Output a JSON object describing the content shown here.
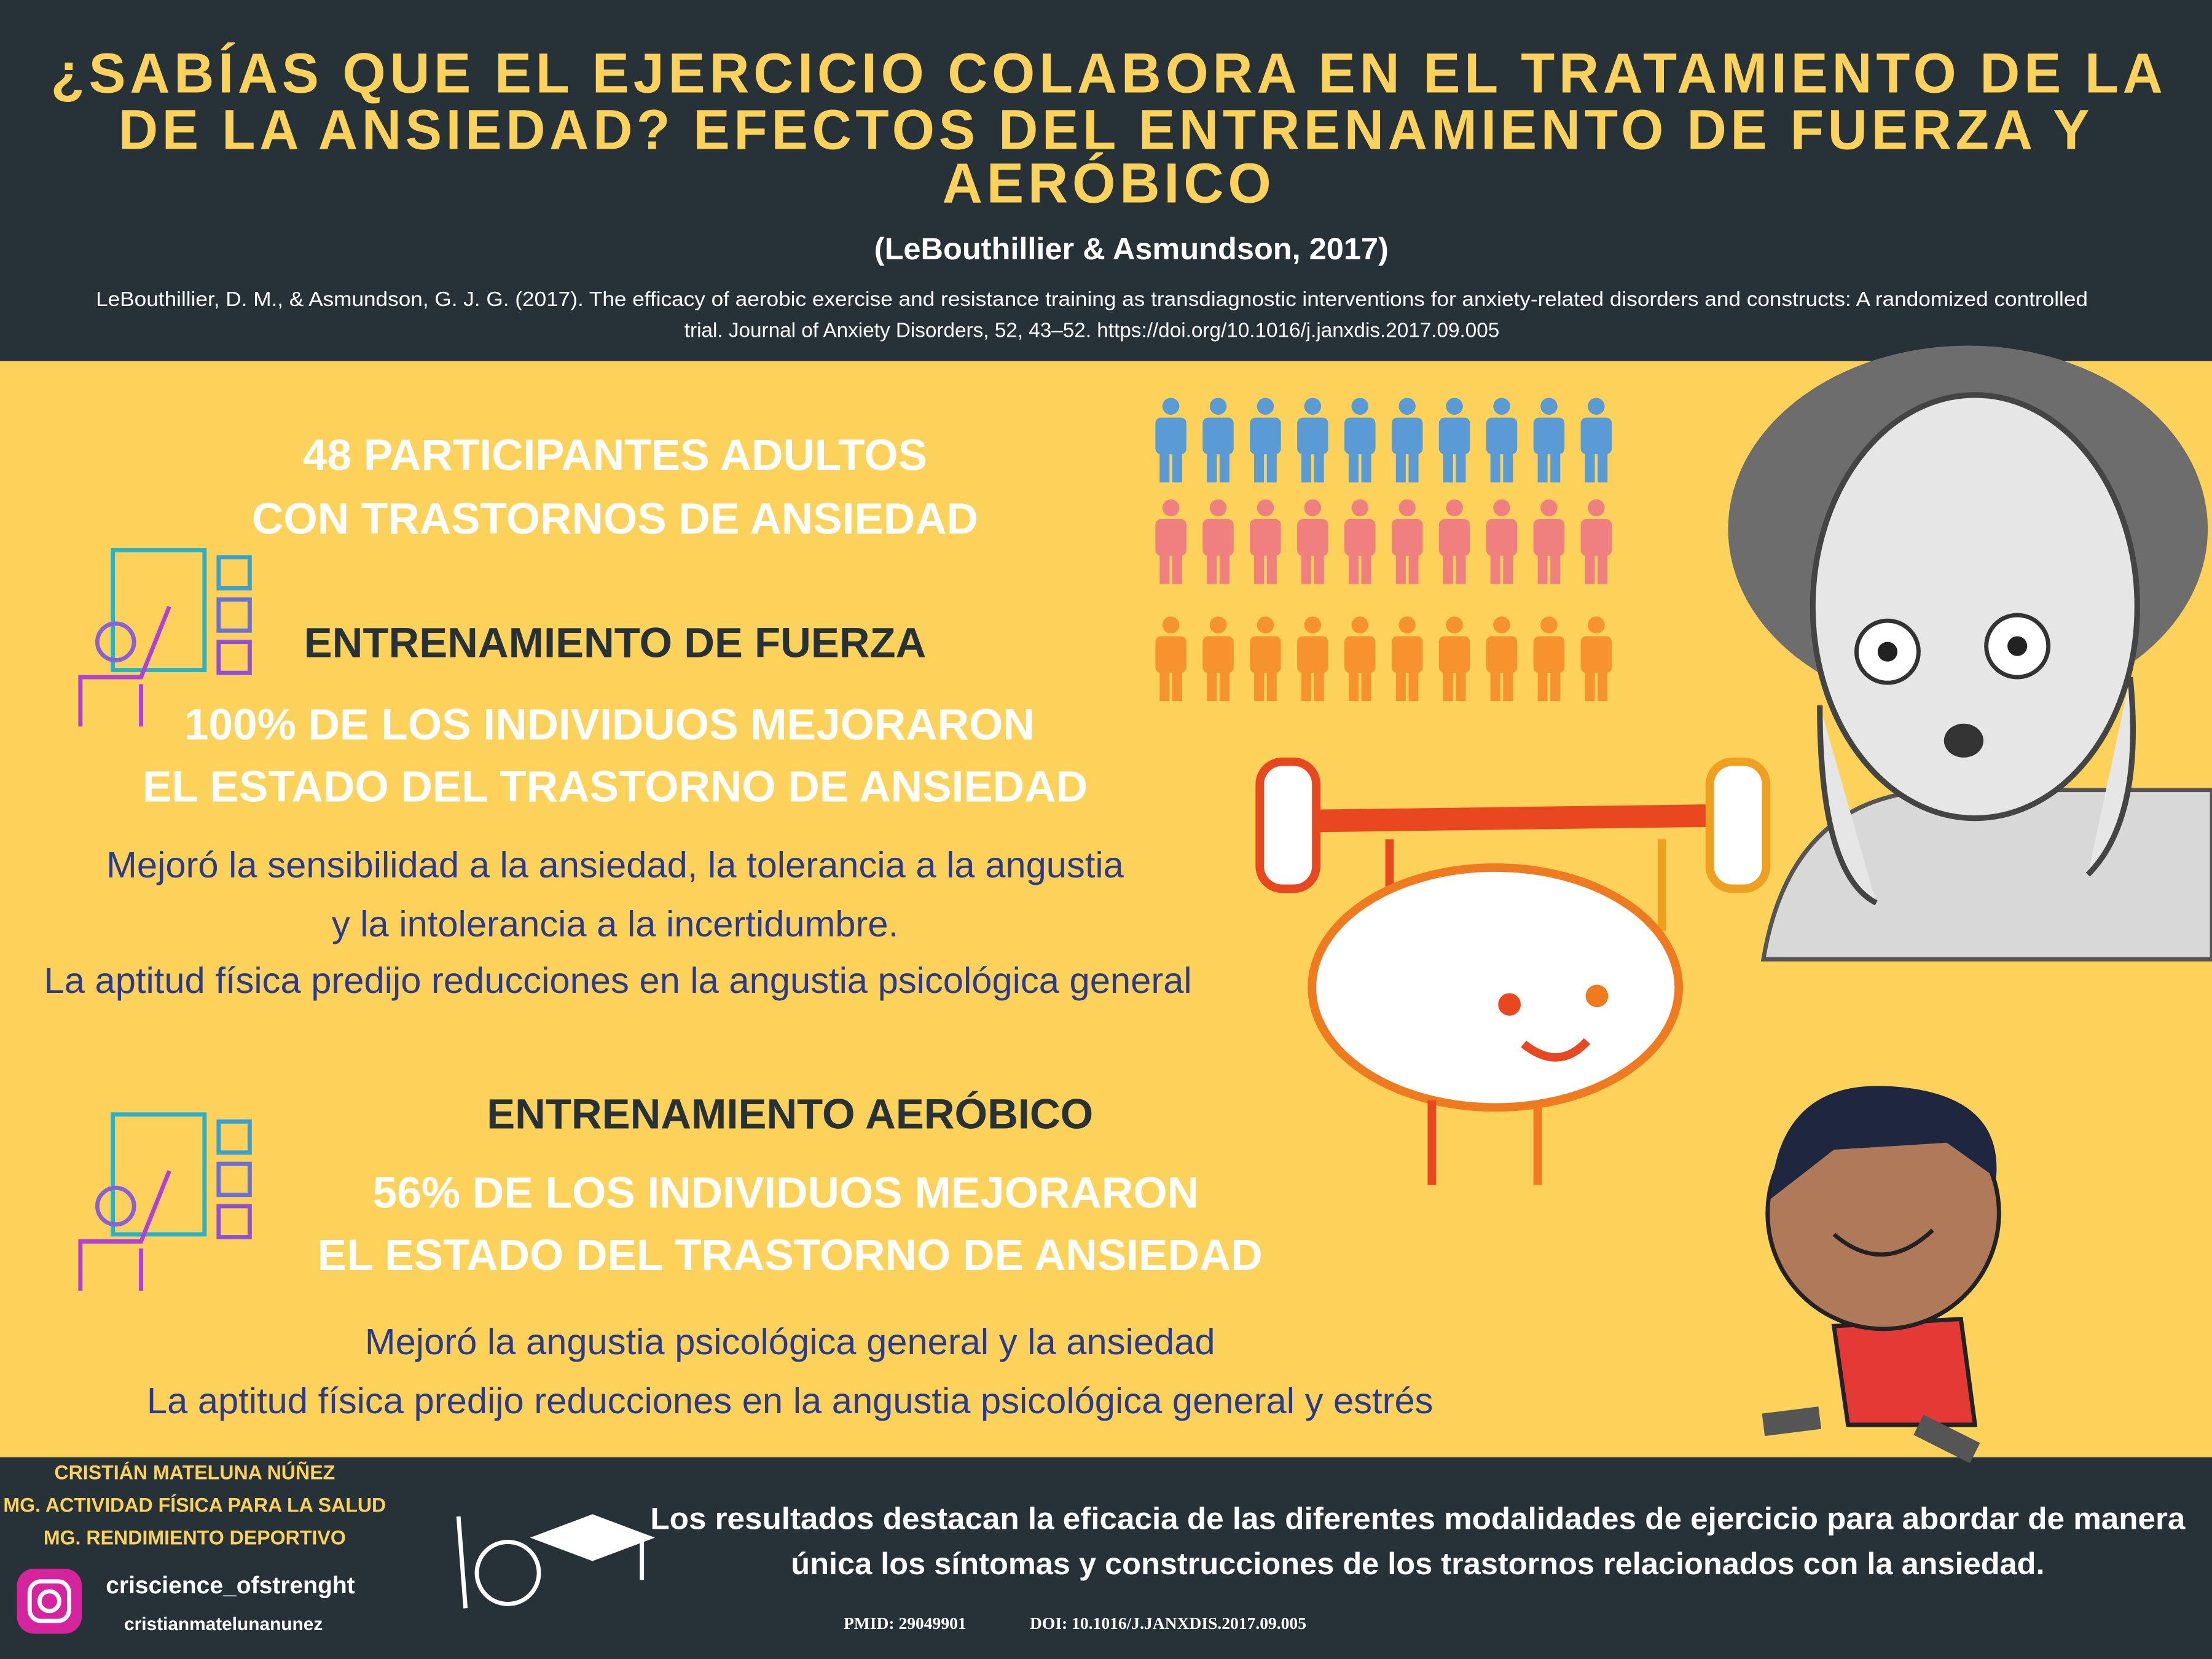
{
  "header": {
    "title": [
      "¿SABÍAS QUE EL EJERCICIO COLABORA EN EL TRATAMIENTO DE LA",
      "DE LA ANSIEDAD? EFECTOS DEL ENTRENAMIENTO DE FUERZA Y",
      "AERÓBICO"
    ],
    "citation": "(LeBouthillier & Asmundson, 2017)",
    "reference": [
      "LeBouthillier, D. M., & Asmundson, G. J. G. (2017). The efficacy of aerobic exercise and resistance training as transdiagnostic interventions for anxiety-related disorders and constructs: A randomized controlled",
      "trial. Journal of Anxiety Disorders, 52, 43–52. https://doi.org/10.1016/j.janxdis.2017.09.005"
    ]
  },
  "participants": [
    "48 PARTICIPANTES ADULTOS",
    "CON TRASTORNOS DE ANSIEDAD"
  ],
  "strength": {
    "heading": "ENTRENAMIENTO DE FUERZA",
    "result": [
      "100% DE LOS INDIVIDUOS MEJORARON",
      "EL ESTADO DEL TRASTORNO DE ANSIEDAD"
    ],
    "details": [
      "Mejoró la sensibilidad a la ansiedad, la tolerancia a la angustia",
      "y la intolerancia a la incertidumbre.",
      "La aptitud física predijo reducciones en la angustia psicológica general"
    ]
  },
  "aerobic": {
    "heading": "ENTRENAMIENTO AERÓBICO",
    "result": [
      "56% DE LOS INDIVIDUOS MEJORARON",
      "EL ESTADO DEL TRASTORNO DE ANSIEDAD"
    ],
    "details": [
      "Mejoró la angustia psicológica general y la ansiedad",
      "La aptitud física predijo reducciones en la angustia psicológica general y estrés"
    ]
  },
  "footer": {
    "author": [
      "CRISTIÁN MATELUNA NÚÑEZ",
      "MG. ACTIVIDAD FÍSICA PARA LA SALUD",
      "MG. RENDIMIENTO DEPORTIVO"
    ],
    "instagram": "criscience_ofstrenght",
    "handle": "cristianmatelunanunez",
    "conclusion": [
      "Los resultados destacan la eficacia de las diferentes modalidades de ejercicio para abordar de manera",
      "única los síntomas y construcciones de los trastornos relacionados con la ansiedad."
    ],
    "pmid": "PMID: 29049901",
    "doi": "DOI: 10.1016/J.JANXDIS.2017.09.005"
  }
}
